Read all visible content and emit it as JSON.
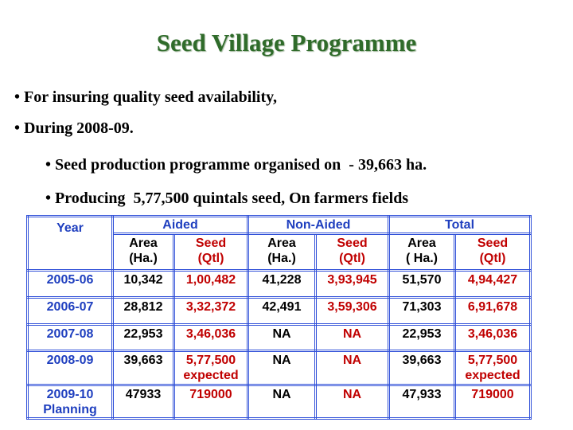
{
  "header": {
    "title": "Seed Village Programme",
    "bullets": [
      "• For insuring quality seed availability,",
      "• During 2008-09."
    ],
    "sub_bullets": [
      "• Seed production programme organised on  - 39,663 ha.",
      "• Producing  5,77,500 quintals seed, On farmers fields"
    ]
  },
  "table": {
    "year_header": "Year",
    "groups": [
      "Aided",
      "Non-Aided",
      "Total"
    ],
    "subheaders": [
      "Area\n(Ha.)",
      "Seed\n(Qtl)",
      "Area\n(Ha.)",
      "Seed\n(Qtl)",
      "Area\n( Ha.)",
      "Seed\n(Qtl)"
    ],
    "rows": [
      [
        "2005-06",
        "10,342",
        "1,00,482",
        "41,228",
        "3,93,945",
        "51,570",
        "4,94,427"
      ],
      [
        "2006-07",
        "28,812",
        "3,32,372",
        "42,491",
        "3,59,306",
        "71,303",
        "6,91,678"
      ],
      [
        "2007-08",
        "22,953",
        "3,46,036",
        "NA",
        "NA",
        "22,953",
        "3,46,036"
      ],
      [
        "2008-09",
        "39,663",
        "5,77,500\nexpected",
        "NA",
        "NA",
        "39,663",
        "5,77,500\nexpected"
      ],
      [
        "2009-10\nPlanning",
        "47933",
        "719000",
        "NA",
        "NA",
        "47,933",
        "719000"
      ]
    ]
  }
}
